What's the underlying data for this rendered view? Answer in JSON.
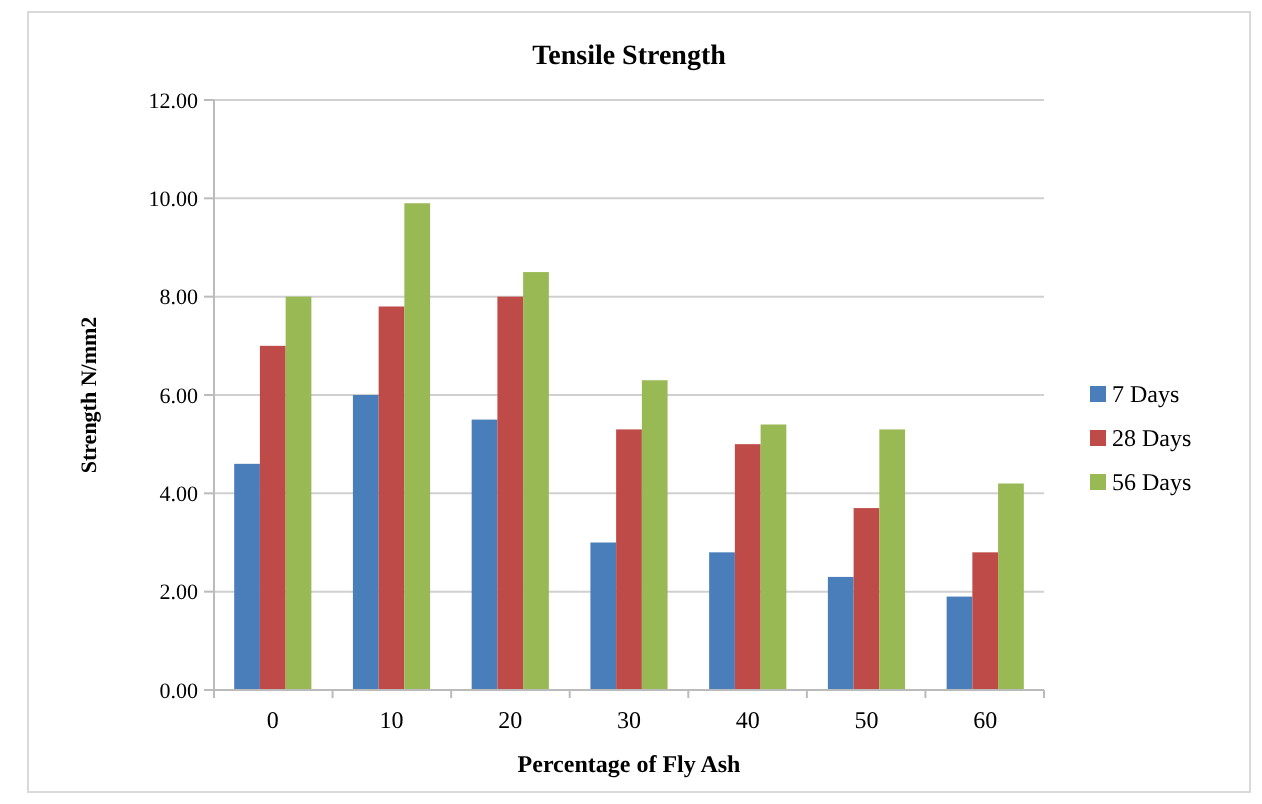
{
  "chart_data": {
    "type": "bar",
    "title": "Tensile Strength",
    "xlabel": "Percentage of Fly Ash",
    "ylabel": "Strength N/mm2",
    "categories": [
      "0",
      "10",
      "20",
      "30",
      "40",
      "50",
      "60"
    ],
    "series": [
      {
        "name": "7 Days",
        "color": "#4a7ebb",
        "values": [
          4.6,
          6.0,
          5.5,
          3.0,
          2.8,
          2.3,
          1.9
        ]
      },
      {
        "name": "28 Days",
        "color": "#be4b48",
        "values": [
          7.0,
          7.8,
          8.0,
          5.3,
          5.0,
          3.7,
          2.8
        ]
      },
      {
        "name": "56 Days",
        "color": "#98b954",
        "values": [
          8.0,
          9.9,
          8.5,
          6.3,
          5.4,
          5.3,
          4.2
        ]
      }
    ],
    "ylim": [
      0,
      12
    ],
    "yticks": [
      {
        "value": 0,
        "label": "0.00"
      },
      {
        "value": 2,
        "label": "2.00"
      },
      {
        "value": 4,
        "label": "4.00"
      },
      {
        "value": 6,
        "label": "6.00"
      },
      {
        "value": 8,
        "label": "8.00"
      },
      {
        "value": 10,
        "label": "10.00"
      },
      {
        "value": 12,
        "label": "12.00"
      }
    ],
    "grid": "y",
    "legend": "right"
  }
}
